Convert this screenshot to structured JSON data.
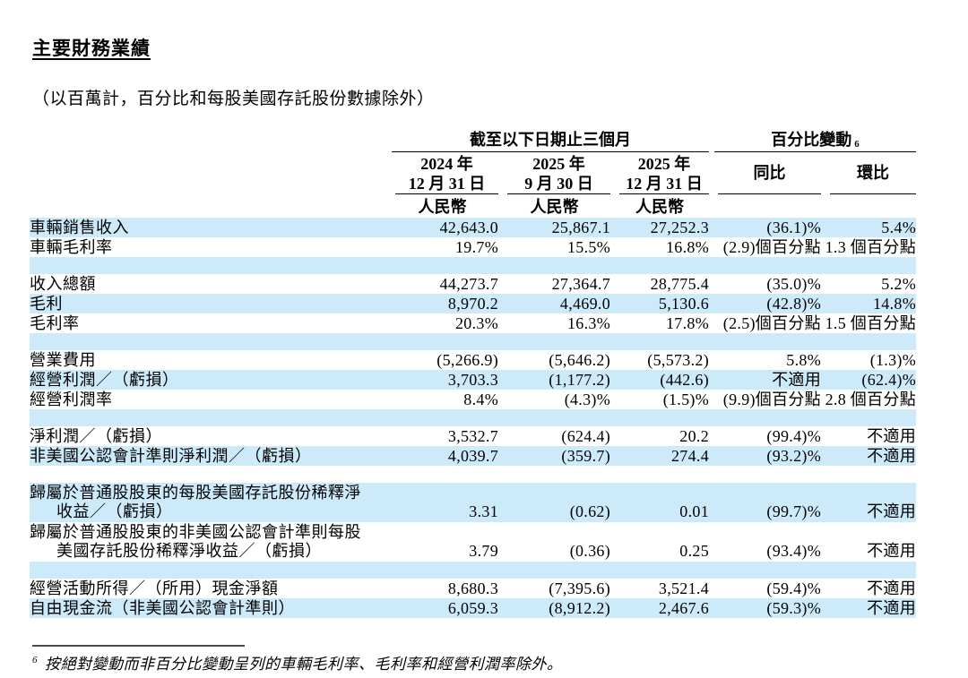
{
  "page": {
    "title": "主要財務業績",
    "subtitle": "（以百萬計，百分比和每股美國存託股份數據除外）",
    "footnote_marker": "6",
    "footnote_text": "按絕對變動而非百分比變動呈列的車輛毛利率、毛利率和經營利潤率除外。"
  },
  "colors": {
    "row_stripe": "#cdeafb"
  },
  "table": {
    "group_headers": {
      "period": "截至以下日期止三個月",
      "pct_change": "百分比變動",
      "pct_change_superscript": "6"
    },
    "columns": [
      {
        "line1": "2024 年",
        "line2": "12 月 31 日",
        "sub": "人民幣"
      },
      {
        "line1": "2025 年",
        "line2": "9 月 30 日",
        "sub": "人民幣"
      },
      {
        "line1": "2025 年",
        "line2": "12 月 31 日",
        "sub": "人民幣"
      },
      {
        "line1": "同比",
        "line2": "",
        "sub": ""
      },
      {
        "line1": "環比",
        "line2": "",
        "sub": ""
      }
    ],
    "rows": [
      {
        "label": [
          "車輛銷售收入"
        ],
        "values": [
          "42,643.0",
          "25,867.1",
          "27,252.3",
          "(36.1)%",
          "5.4%"
        ],
        "shade": true
      },
      {
        "label": [
          "車輛毛利率"
        ],
        "values": [
          "19.7%",
          "15.5%",
          "16.8%",
          "(2.9)個百分點",
          "1.3 個百分點"
        ],
        "shade": false
      },
      {
        "blank": true,
        "shade": true
      },
      {
        "label": [
          "收入總額"
        ],
        "values": [
          "44,273.7",
          "27,364.7",
          "28,775.4",
          "(35.0)%",
          "5.2%"
        ],
        "shade": false
      },
      {
        "label": [
          "毛利"
        ],
        "values": [
          "8,970.2",
          "4,469.0",
          "5,130.6",
          "(42.8)%",
          "14.8%"
        ],
        "shade": true
      },
      {
        "label": [
          "毛利率"
        ],
        "values": [
          "20.3%",
          "16.3%",
          "17.8%",
          "(2.5)個百分點",
          "1.5 個百分點"
        ],
        "shade": false
      },
      {
        "blank": true,
        "shade": true
      },
      {
        "label": [
          "營業費用"
        ],
        "values": [
          "(5,266.9)",
          "(5,646.2)",
          "(5,573.2)",
          "5.8%",
          "(1.3)%"
        ],
        "shade": false
      },
      {
        "label": [
          "經營利潤／（虧損）"
        ],
        "values": [
          "3,703.3",
          "(1,177.2)",
          "(442.6)",
          "不適用",
          "(62.4)%"
        ],
        "shade": true
      },
      {
        "label": [
          "經營利潤率"
        ],
        "values": [
          "8.4%",
          "(4.3)%",
          "(1.5)%",
          "(9.9)個百分點",
          "2.8 個百分點"
        ],
        "shade": false
      },
      {
        "blank": true,
        "shade": true
      },
      {
        "label": [
          "淨利潤／（虧損）"
        ],
        "values": [
          "3,532.7",
          "(624.4)",
          "20.2",
          "(99.4)%",
          "不適用"
        ],
        "shade": false
      },
      {
        "label": [
          "非美國公認會計準則淨利潤／（虧損）"
        ],
        "values": [
          "4,039.7",
          "(359.7)",
          "274.4",
          "(93.2)%",
          "不適用"
        ],
        "shade": true
      },
      {
        "blank": true,
        "shade": false
      },
      {
        "label": [
          "歸屬於普通股股東的每股美國存託股份稀釋淨",
          "收益／（虧損）"
        ],
        "values": [
          "3.31",
          "(0.62)",
          "0.01",
          "(99.7)%",
          "不適用"
        ],
        "shade": true
      },
      {
        "label": [
          "歸屬於普通股股東的非美國公認會計準則每股",
          "美國存託股份稀釋淨收益／（虧損）"
        ],
        "values": [
          "3.79",
          "(0.36)",
          "0.25",
          "(93.4)%",
          "不適用"
        ],
        "shade": false
      },
      {
        "blank": true,
        "shade": true
      },
      {
        "label": [
          "經營活動所得／（所用）現金淨額"
        ],
        "values": [
          "8,680.3",
          "(7,395.6)",
          "3,521.4",
          "(59.4)%",
          "不適用"
        ],
        "shade": false
      },
      {
        "label": [
          "自由現金流（非美國公認會計準則）"
        ],
        "values": [
          "6,059.3",
          "(8,912.2)",
          "2,467.6",
          "(59.3)%",
          "不適用"
        ],
        "shade": true
      }
    ]
  }
}
